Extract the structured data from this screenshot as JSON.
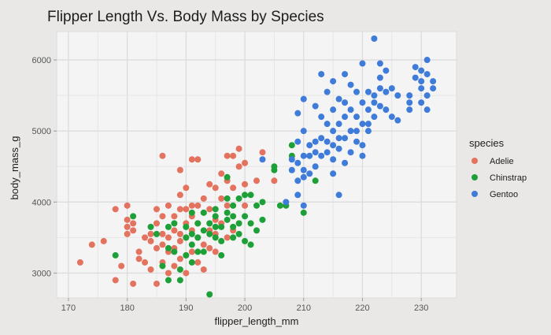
{
  "chart_data": {
    "type": "scatter",
    "title": "Flipper Length Vs. Body Mass by Species",
    "xlabel": "flipper_length_mm",
    "ylabel": "body_mass_g",
    "xlim": [
      168,
      236
    ],
    "ylim": [
      2650,
      6400
    ],
    "xticks": [
      170,
      180,
      190,
      200,
      210,
      220,
      230
    ],
    "yticks": [
      3000,
      4000,
      5000,
      6000
    ],
    "grid": true,
    "legend_title": "species",
    "legend_position": "right",
    "series": [
      {
        "name": "Adelie",
        "color": "#e3735e",
        "points": [
          [
            172,
            3150
          ],
          [
            174,
            3400
          ],
          [
            176,
            3450
          ],
          [
            178,
            3900
          ],
          [
            178,
            2900
          ],
          [
            179,
            3100
          ],
          [
            180,
            3950
          ],
          [
            180,
            3750
          ],
          [
            180,
            3650
          ],
          [
            180,
            3550
          ],
          [
            181,
            2850
          ],
          [
            181,
            3700
          ],
          [
            181,
            3600
          ],
          [
            182,
            3300
          ],
          [
            182,
            3200
          ],
          [
            183,
            3500
          ],
          [
            183,
            3150
          ],
          [
            184,
            3450
          ],
          [
            184,
            3050
          ],
          [
            184,
            3550
          ],
          [
            185,
            3700
          ],
          [
            185,
            3900
          ],
          [
            185,
            3350
          ],
          [
            185,
            2850
          ],
          [
            186,
            3550
          ],
          [
            186,
            3400
          ],
          [
            186,
            3150
          ],
          [
            186,
            3800
          ],
          [
            186,
            4650
          ],
          [
            187,
            3500
          ],
          [
            187,
            3300
          ],
          [
            187,
            3950
          ],
          [
            187,
            3000
          ],
          [
            188,
            3600
          ],
          [
            188,
            3350
          ],
          [
            188,
            3800
          ],
          [
            188,
            3100
          ],
          [
            189,
            3550
          ],
          [
            189,
            3450
          ],
          [
            189,
            3200
          ],
          [
            189,
            4100
          ],
          [
            189,
            4450
          ],
          [
            189,
            3900
          ],
          [
            190,
            3700
          ],
          [
            190,
            3500
          ],
          [
            190,
            3250
          ],
          [
            190,
            3900
          ],
          [
            190,
            3000
          ],
          [
            190,
            4200
          ],
          [
            191,
            3800
          ],
          [
            191,
            3600
          ],
          [
            191,
            3300
          ],
          [
            191,
            4600
          ],
          [
            191,
            3950
          ],
          [
            192,
            3500
          ],
          [
            192,
            3700
          ],
          [
            192,
            3150
          ],
          [
            192,
            4600
          ],
          [
            192,
            3950
          ],
          [
            193,
            3400
          ],
          [
            193,
            3850
          ],
          [
            193,
            4050
          ],
          [
            193,
            3050
          ],
          [
            194,
            3600
          ],
          [
            194,
            4250
          ],
          [
            194,
            3350
          ],
          [
            194,
            3900
          ],
          [
            195,
            3550
          ],
          [
            195,
            4200
          ],
          [
            195,
            3750
          ],
          [
            195,
            3300
          ],
          [
            196,
            3700
          ],
          [
            196,
            4400
          ],
          [
            196,
            4050
          ],
          [
            197,
            3500
          ],
          [
            197,
            4300
          ],
          [
            197,
            4650
          ],
          [
            197,
            3950
          ],
          [
            198,
            3600
          ],
          [
            198,
            4650
          ],
          [
            198,
            4200
          ],
          [
            199,
            4500
          ],
          [
            199,
            4750
          ],
          [
            200,
            4250
          ],
          [
            200,
            3950
          ],
          [
            200,
            4550
          ],
          [
            202,
            4300
          ],
          [
            203,
            4700
          ],
          [
            205,
            4300
          ]
        ]
      },
      {
        "name": "Chinstrap",
        "color": "#1ea039",
        "points": [
          [
            178,
            3250
          ],
          [
            181,
            3800
          ],
          [
            184,
            3650
          ],
          [
            185,
            3550
          ],
          [
            186,
            3100
          ],
          [
            187,
            3350
          ],
          [
            187,
            2900
          ],
          [
            187,
            3650
          ],
          [
            188,
            3300
          ],
          [
            188,
            3700
          ],
          [
            189,
            3050
          ],
          [
            189,
            2900
          ],
          [
            190,
            3500
          ],
          [
            190,
            3650
          ],
          [
            190,
            3250
          ],
          [
            191,
            3400
          ],
          [
            191,
            3550
          ],
          [
            191,
            3850
          ],
          [
            191,
            3150
          ],
          [
            192,
            3700
          ],
          [
            192,
            3500
          ],
          [
            192,
            3300
          ],
          [
            193,
            3850
          ],
          [
            193,
            3600
          ],
          [
            193,
            3300
          ],
          [
            194,
            3700
          ],
          [
            194,
            3550
          ],
          [
            194,
            2700
          ],
          [
            195,
            3800
          ],
          [
            195,
            3650
          ],
          [
            195,
            3500
          ],
          [
            195,
            3900
          ],
          [
            196,
            3450
          ],
          [
            196,
            3250
          ],
          [
            196,
            3650
          ],
          [
            197,
            3750
          ],
          [
            197,
            4350
          ],
          [
            197,
            3850
          ],
          [
            197,
            4050
          ],
          [
            198,
            3500
          ],
          [
            198,
            3800
          ],
          [
            198,
            3650
          ],
          [
            198,
            3950
          ],
          [
            199,
            3700
          ],
          [
            199,
            3550
          ],
          [
            199,
            4050
          ],
          [
            200,
            3800
          ],
          [
            200,
            3450
          ],
          [
            200,
            4100
          ],
          [
            201,
            3700
          ],
          [
            201,
            4100
          ],
          [
            201,
            3400
          ],
          [
            202,
            3950
          ],
          [
            202,
            3600
          ],
          [
            203,
            3750
          ],
          [
            203,
            4000
          ],
          [
            205,
            4450
          ],
          [
            205,
            4500
          ],
          [
            206,
            3950
          ],
          [
            207,
            3950
          ],
          [
            208,
            4650
          ],
          [
            208,
            4800
          ],
          [
            210,
            3850
          ],
          [
            212,
            4300
          ]
        ]
      },
      {
        "name": "Gentoo",
        "color": "#3f7bd8",
        "points": [
          [
            203,
            4600
          ],
          [
            207,
            4000
          ],
          [
            208,
            4600
          ],
          [
            208,
            4450
          ],
          [
            209,
            4300
          ],
          [
            209,
            4100
          ],
          [
            209,
            4550
          ],
          [
            209,
            4850
          ],
          [
            209,
            5250
          ],
          [
            210,
            5000
          ],
          [
            210,
            4650
          ],
          [
            210,
            4350
          ],
          [
            210,
            4450
          ],
          [
            210,
            5450
          ],
          [
            210,
            3950
          ],
          [
            211,
            4800
          ],
          [
            211,
            4400
          ],
          [
            211,
            4650
          ],
          [
            212,
            4850
          ],
          [
            212,
            4500
          ],
          [
            212,
            4700
          ],
          [
            212,
            5350
          ],
          [
            213,
            4900
          ],
          [
            213,
            4650
          ],
          [
            213,
            5800
          ],
          [
            213,
            5200
          ],
          [
            214,
            4850
          ],
          [
            214,
            4700
          ],
          [
            214,
            5100
          ],
          [
            214,
            5550
          ],
          [
            215,
            5000
          ],
          [
            215,
            4800
          ],
          [
            215,
            5300
          ],
          [
            215,
            4600
          ],
          [
            215,
            5700
          ],
          [
            215,
            4400
          ],
          [
            216,
            4900
          ],
          [
            216,
            5100
          ],
          [
            216,
            4750
          ],
          [
            216,
            5450
          ],
          [
            216,
            4100
          ],
          [
            217,
            4900
          ],
          [
            217,
            5200
          ],
          [
            217,
            5400
          ],
          [
            217,
            5800
          ],
          [
            217,
            4550
          ],
          [
            218,
            5000
          ],
          [
            218,
            5300
          ],
          [
            218,
            4700
          ],
          [
            218,
            5650
          ],
          [
            219,
            4850
          ],
          [
            219,
            5550
          ],
          [
            219,
            5200
          ],
          [
            219,
            5000
          ],
          [
            220,
            5400
          ],
          [
            220,
            5100
          ],
          [
            220,
            4800
          ],
          [
            220,
            5950
          ],
          [
            220,
            4650
          ],
          [
            221,
            5300
          ],
          [
            221,
            5550
          ],
          [
            221,
            5100
          ],
          [
            221,
            5000
          ],
          [
            222,
            5500
          ],
          [
            222,
            5200
          ],
          [
            222,
            6300
          ],
          [
            222,
            5400
          ],
          [
            223,
            5350
          ],
          [
            223,
            5600
          ],
          [
            223,
            5950
          ],
          [
            223,
            5750
          ],
          [
            224,
            5550
          ],
          [
            224,
            5300
          ],
          [
            224,
            5850
          ],
          [
            225,
            5600
          ],
          [
            225,
            5200
          ],
          [
            226,
            5500
          ],
          [
            226,
            5150
          ],
          [
            228,
            5300
          ],
          [
            228,
            5500
          ],
          [
            228,
            5400
          ],
          [
            229,
            5900
          ],
          [
            229,
            5750
          ],
          [
            230,
            5400
          ],
          [
            230,
            5700
          ],
          [
            230,
            5600
          ],
          [
            230,
            5850
          ],
          [
            231,
            6000
          ],
          [
            231,
            5300
          ],
          [
            231,
            5500
          ],
          [
            231,
            5800
          ],
          [
            232,
            5600
          ],
          [
            232,
            5700
          ]
        ]
      }
    ]
  }
}
